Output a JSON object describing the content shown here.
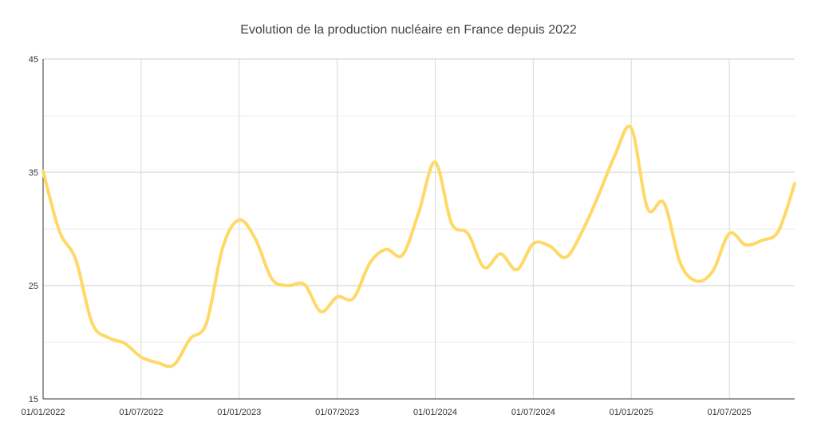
{
  "chart_data": {
    "type": "line",
    "title": "Evolution de la production nucléaire en France depuis 2022",
    "xlabel": "",
    "ylabel": "",
    "ylim": [
      15,
      45
    ],
    "xlim": [
      "2022-01",
      "2025-11"
    ],
    "y_ticks": [
      "15",
      "25",
      "35",
      "45"
    ],
    "y_minor_gridlines": [
      20,
      30,
      40
    ],
    "x_ticks": [
      {
        "label": "01/01/2022",
        "x": "2022-01"
      },
      {
        "label": "01/07/2022",
        "x": "2022-07"
      },
      {
        "label": "01/01/2023",
        "x": "2023-01"
      },
      {
        "label": "01/07/2023",
        "x": "2023-07"
      },
      {
        "label": "01/01/2024",
        "x": "2024-01"
      },
      {
        "label": "01/07/2024",
        "x": "2024-07"
      },
      {
        "label": "01/01/2025",
        "x": "2025-01"
      },
      {
        "label": "01/07/2025",
        "x": "2025-07"
      }
    ],
    "grid": true,
    "legend": "none",
    "series": [
      {
        "color": "#FFD966",
        "x": [
          "2022-01",
          "2022-02",
          "2022-03",
          "2022-04",
          "2022-05",
          "2022-06",
          "2022-07",
          "2022-08",
          "2022-09",
          "2022-10",
          "2022-11",
          "2022-12",
          "2023-01",
          "2023-02",
          "2023-03",
          "2023-04",
          "2023-05",
          "2023-06",
          "2023-07",
          "2023-08",
          "2023-09",
          "2023-10",
          "2023-11",
          "2023-12",
          "2024-01",
          "2024-02",
          "2024-03",
          "2024-04",
          "2024-05",
          "2024-06",
          "2024-07",
          "2024-08",
          "2024-09",
          "2024-10",
          "2024-11",
          "2024-12",
          "2025-01",
          "2025-02",
          "2025-03",
          "2025-04",
          "2025-05",
          "2025-06",
          "2025-07",
          "2025-08",
          "2025-09",
          "2025-10",
          "2025-11"
        ],
        "values": [
          35.1,
          29.8,
          27.3,
          21.7,
          20.4,
          19.9,
          18.7,
          18.2,
          18.0,
          20.3,
          21.7,
          28.4,
          30.8,
          29.1,
          25.6,
          25.0,
          25.1,
          22.7,
          24.0,
          23.9,
          27.0,
          28.2,
          27.7,
          31.5,
          35.9,
          30.5,
          29.6,
          26.6,
          27.8,
          26.4,
          28.7,
          28.5,
          27.5,
          29.8,
          33.0,
          36.5,
          38.9,
          31.8,
          32.3,
          27.0,
          25.4,
          26.3,
          29.6,
          28.6,
          29.0,
          29.8,
          34.0
        ]
      }
    ]
  }
}
